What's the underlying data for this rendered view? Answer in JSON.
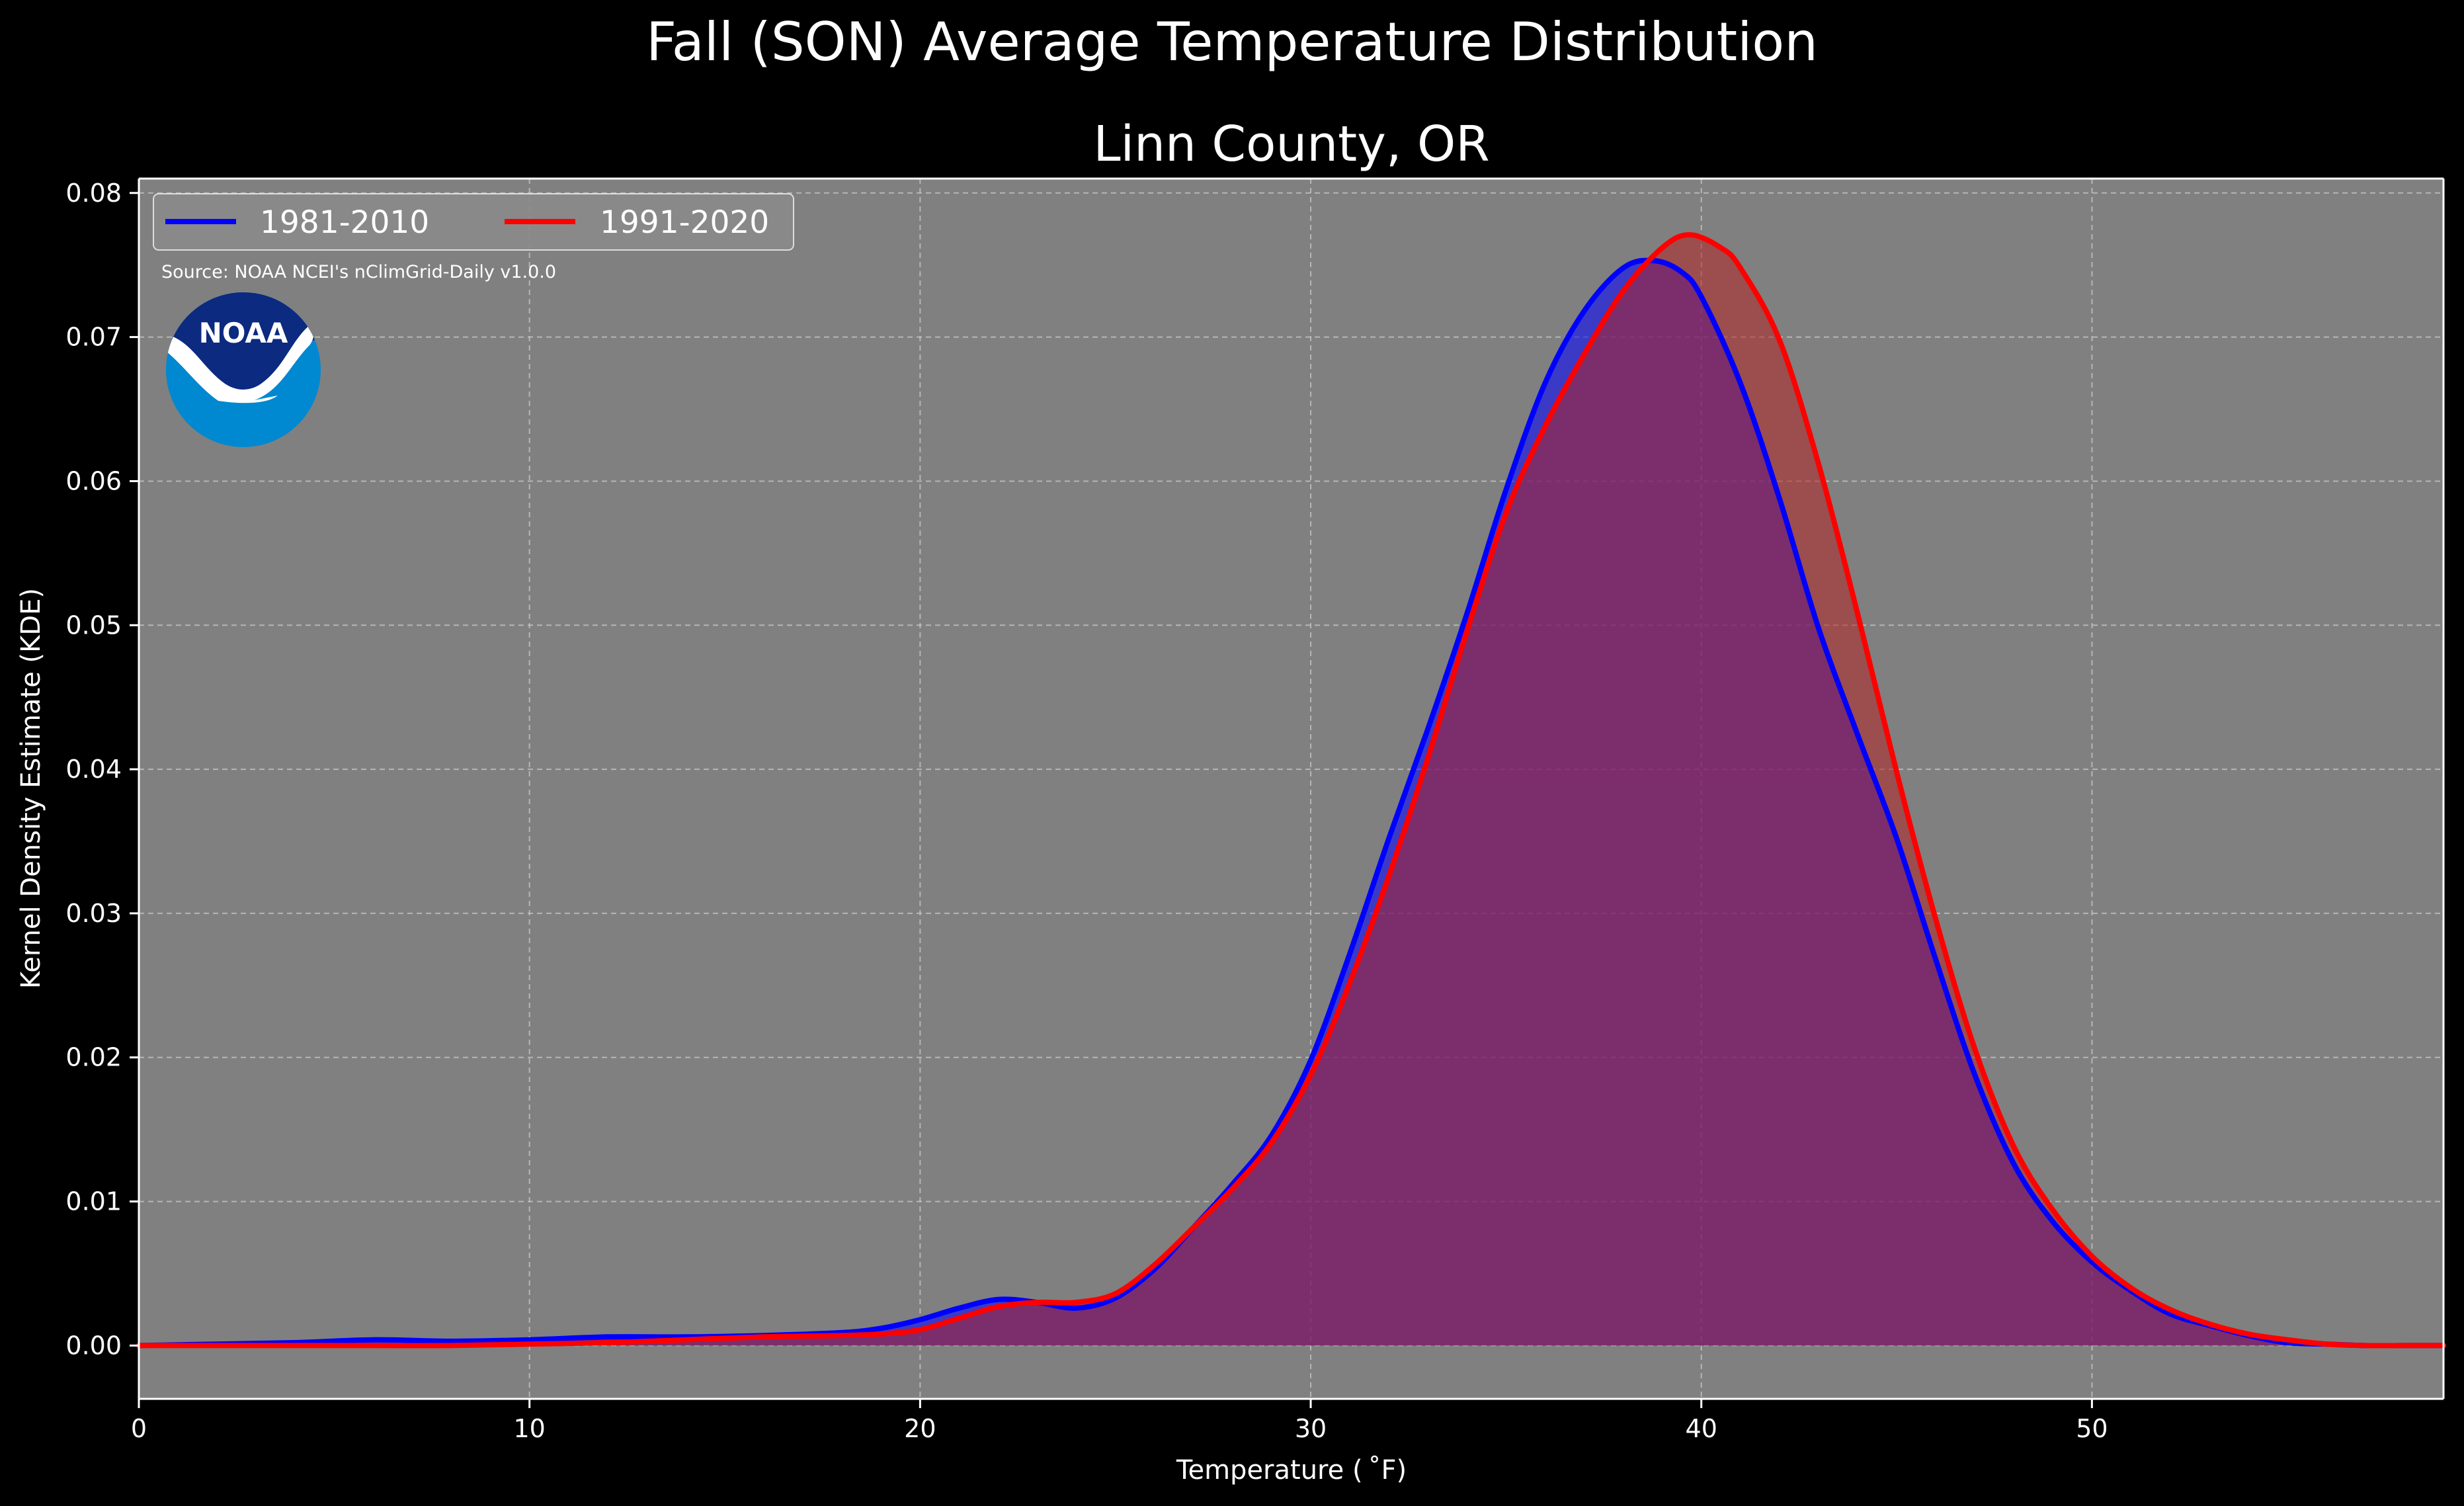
{
  "chart_data": {
    "type": "area",
    "title": "Fall (SON) Average Temperature Distribution",
    "subtitle": "Linn County, OR",
    "xlabel": "Temperature ($^\\circ$F)",
    "xlabel_display": "Temperature ( ˚F)",
    "ylabel": "Kernel Density Estimate (KDE)",
    "xlim": [
      0,
      59
    ],
    "ylim": [
      -0.0037,
      0.081
    ],
    "x_ticks": [
      0,
      10,
      20,
      30,
      40,
      50
    ],
    "x_tick_labels": [
      "0",
      "10",
      "20",
      "30",
      "40",
      "50"
    ],
    "y_ticks": [
      0.0,
      0.01,
      0.02,
      0.03,
      0.04,
      0.05,
      0.06,
      0.07,
      0.08
    ],
    "y_tick_labels": [
      "0.00",
      "0.01",
      "0.02",
      "0.03",
      "0.04",
      "0.05",
      "0.06",
      "0.07",
      "0.08"
    ],
    "grid": true,
    "legend_position": "top-left",
    "source": "Source: NOAA NCEI's nClimGrid-Daily v1.0.0",
    "logo_text": "NOAA",
    "series": [
      {
        "name": "1981-2010",
        "color": "#0000ff",
        "fill_color": "#0000ff",
        "x": [
          0,
          2,
          4,
          6,
          8,
          10,
          12,
          14,
          16,
          18,
          19,
          20,
          21,
          22,
          23,
          24,
          25,
          26,
          27,
          28,
          29,
          30,
          31,
          32,
          33,
          34,
          35,
          36,
          37,
          38,
          38.8,
          39.5,
          40,
          41,
          42,
          43,
          44,
          45,
          46,
          47,
          48,
          49,
          50,
          51,
          52,
          53,
          54,
          55,
          56,
          57,
          58,
          59
        ],
        "y": [
          0.0,
          0.0001,
          0.0002,
          0.0004,
          0.0003,
          0.0004,
          0.0006,
          0.0006,
          0.0007,
          0.0009,
          0.0012,
          0.0018,
          0.0026,
          0.0032,
          0.003,
          0.0026,
          0.0033,
          0.0053,
          0.0082,
          0.0112,
          0.0146,
          0.0198,
          0.0272,
          0.0352,
          0.0428,
          0.0508,
          0.0594,
          0.0668,
          0.0718,
          0.0748,
          0.0753,
          0.0745,
          0.0728,
          0.0668,
          0.0588,
          0.0498,
          0.0424,
          0.0352,
          0.0268,
          0.0188,
          0.0126,
          0.0086,
          0.0058,
          0.0038,
          0.0022,
          0.0014,
          0.0007,
          0.0002,
          0.0001,
          0.0,
          0.0,
          0.0
        ]
      },
      {
        "name": "1991-2020",
        "color": "#ff0000",
        "fill_color": "#b22222",
        "x": [
          0,
          2,
          4,
          6,
          8,
          10,
          12,
          14,
          16,
          18,
          19,
          20,
          21,
          22,
          23,
          24,
          25,
          26,
          27,
          28,
          29,
          30,
          31,
          32,
          33,
          34,
          35,
          36,
          37,
          38,
          39,
          39.7,
          40.5,
          41,
          42,
          43,
          44,
          45,
          46,
          47,
          48,
          49,
          50,
          51,
          52,
          53,
          54,
          55,
          56,
          57,
          58,
          59
        ],
        "y": [
          0.0,
          0.0,
          0.0,
          0.0,
          0.0,
          0.0001,
          0.0002,
          0.0004,
          0.0006,
          0.0007,
          0.0008,
          0.0011,
          0.0019,
          0.0027,
          0.003,
          0.003,
          0.0036,
          0.0056,
          0.0082,
          0.0109,
          0.0141,
          0.0188,
          0.0252,
          0.0326,
          0.0408,
          0.0496,
          0.0578,
          0.0638,
          0.0688,
          0.0732,
          0.0762,
          0.0771,
          0.0762,
          0.0748,
          0.0698,
          0.0612,
          0.0508,
          0.0398,
          0.0296,
          0.0206,
          0.0138,
          0.0094,
          0.0062,
          0.004,
          0.0025,
          0.0015,
          0.0008,
          0.0004,
          0.0001,
          0.0,
          0.0,
          0.0
        ]
      }
    ]
  },
  "style": {
    "background": "#000000",
    "plot_background": "#808080",
    "axis_color": "#ffffff",
    "grid_color": "#c8c8c8",
    "overlap_fill": "#9b1f5c",
    "logo_dark": "#0b2a80",
    "logo_light": "#0088d0"
  }
}
